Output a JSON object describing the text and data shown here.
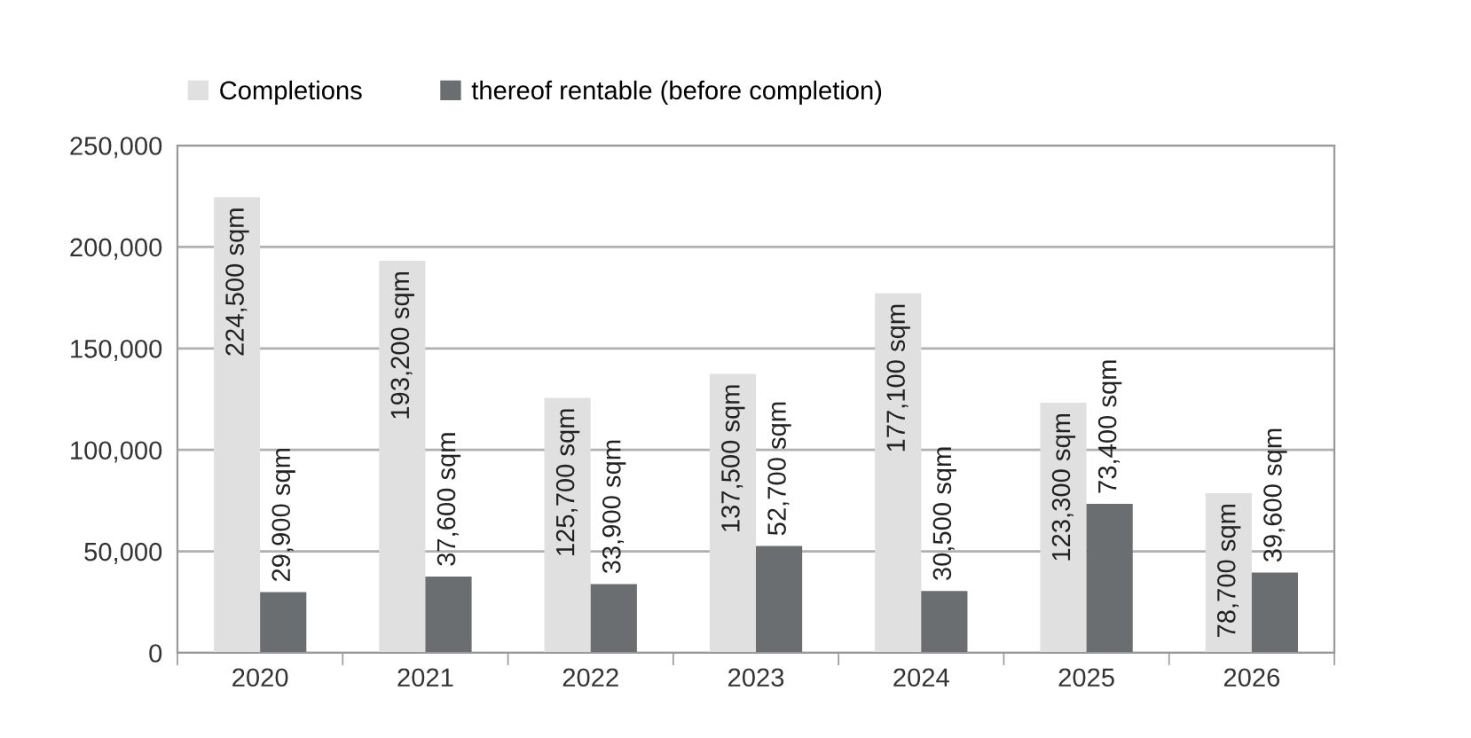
{
  "chart_data": {
    "type": "bar",
    "categories": [
      "2020",
      "2021",
      "2022",
      "2023",
      "2024",
      "2025",
      "2026"
    ],
    "series": [
      {
        "name": "Completions",
        "color": "#e0e0e0",
        "values": [
          224500,
          193200,
          125700,
          137500,
          177100,
          123300,
          78700
        ],
        "value_labels": [
          "224,500 sqm",
          "193,200 sqm",
          "125,700 sqm",
          "137,500 sqm",
          "177,100 sqm",
          "123,300 sqm",
          "78,700 sqm"
        ]
      },
      {
        "name": "thereof rentable (before completion)",
        "color": "#6b6e70",
        "values": [
          29900,
          37600,
          33900,
          52700,
          30500,
          73400,
          39600
        ],
        "value_labels": [
          "29,900 sqm",
          "37,600 sqm",
          "33,900 sqm",
          "52,700 sqm",
          "30,500 sqm",
          "73,400 sqm",
          "39,600 sqm"
        ]
      }
    ],
    "ylim": [
      0,
      250000
    ],
    "yticks": [
      {
        "value": 0,
        "label": "0"
      },
      {
        "value": 50000,
        "label": "50,000"
      },
      {
        "value": 100000,
        "label": "100,000"
      },
      {
        "value": 150000,
        "label": "150,000"
      },
      {
        "value": 200000,
        "label": "200,000"
      },
      {
        "value": 250000,
        "label": "250,000"
      }
    ],
    "grid": "y",
    "legend": "top left"
  }
}
